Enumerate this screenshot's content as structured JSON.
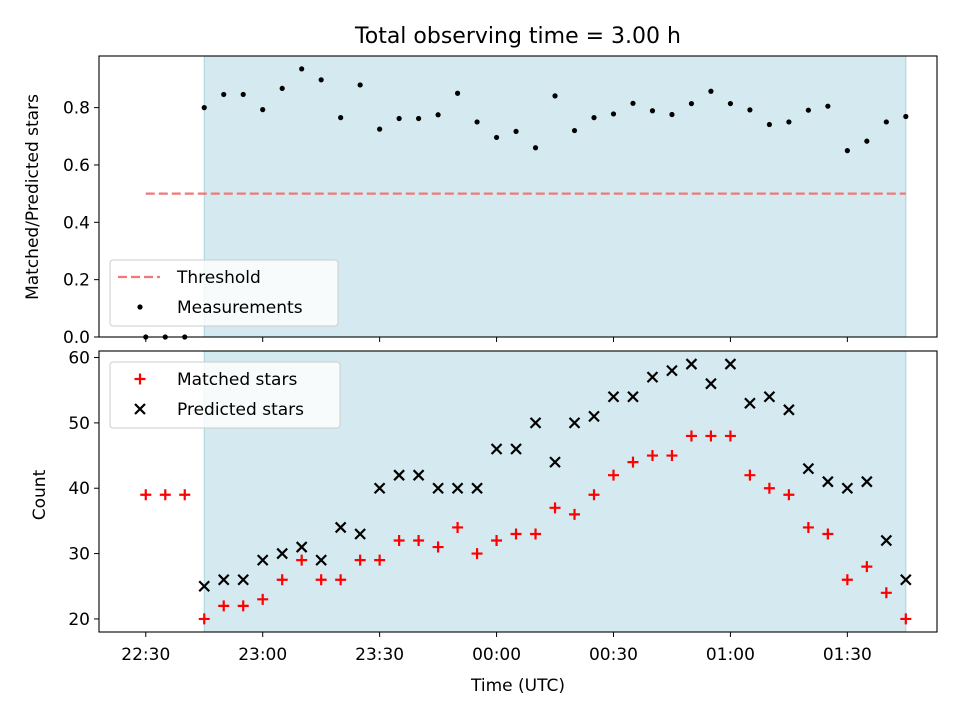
{
  "chart_data": [
    {
      "type": "scatter",
      "title": "Total observing time = 3.00 h",
      "xlabel": "",
      "ylabel": "Matched/Predicted stars",
      "ylim": [
        0,
        0.98
      ],
      "yticks": [
        0.0,
        0.2,
        0.4,
        0.6,
        0.8
      ],
      "ytick_labels": [
        "0.0",
        "0.2",
        "0.4",
        "0.6",
        "0.8"
      ],
      "shaded_interval": [
        "22:45",
        "01:45"
      ],
      "shaded_color": "#d4eaf0",
      "legend": {
        "position": "lower-left",
        "entries": [
          {
            "label": "Threshold",
            "color": "#f07878",
            "style": "dashed-line"
          },
          {
            "label": "Measurements",
            "color": "#000000",
            "style": "dot"
          }
        ]
      },
      "series": [
        {
          "name": "Threshold",
          "style": "dashed-line",
          "color": "#f07878",
          "x": [
            "22:30",
            "01:45"
          ],
          "y": [
            0.5,
            0.5
          ]
        },
        {
          "name": "Measurements",
          "style": "dot",
          "color": "#000000",
          "x": [
            "22:30",
            "22:35",
            "22:40",
            "22:45",
            "22:50",
            "22:55",
            "23:00",
            "23:05",
            "23:10",
            "23:15",
            "23:20",
            "23:25",
            "23:30",
            "23:35",
            "23:40",
            "23:45",
            "23:50",
            "23:55",
            "00:00",
            "00:05",
            "00:10",
            "00:15",
            "00:20",
            "00:25",
            "00:30",
            "00:35",
            "00:40",
            "00:45",
            "00:50",
            "00:55",
            "01:00",
            "01:05",
            "01:10",
            "01:15",
            "01:20",
            "01:25",
            "01:30",
            "01:35",
            "01:40",
            "01:45"
          ],
          "y": [
            0.0,
            0.0,
            0.0,
            0.8,
            0.846,
            0.846,
            0.793,
            0.867,
            0.935,
            0.897,
            0.765,
            0.879,
            0.725,
            0.762,
            0.762,
            0.775,
            0.85,
            0.75,
            0.696,
            0.717,
            0.66,
            0.841,
            0.72,
            0.765,
            0.778,
            0.815,
            0.789,
            0.776,
            0.814,
            0.857,
            0.814,
            0.792,
            0.741,
            0.75,
            0.791,
            0.805,
            0.65,
            0.683,
            0.75,
            0.769
          ]
        }
      ]
    },
    {
      "type": "scatter",
      "title": "",
      "xlabel": "Time (UTC)",
      "ylabel": "Count",
      "ylim": [
        18,
        61
      ],
      "yticks": [
        20,
        30,
        40,
        50,
        60
      ],
      "ytick_labels": [
        "20",
        "30",
        "40",
        "50",
        "60"
      ],
      "xticks": [
        "22:30",
        "23:00",
        "23:30",
        "00:00",
        "00:30",
        "01:00",
        "01:30"
      ],
      "shaded_interval": [
        "22:45",
        "01:45"
      ],
      "shaded_color": "#d4eaf0",
      "legend": {
        "position": "top-left",
        "entries": [
          {
            "label": "Matched stars",
            "color": "#ff0000",
            "style": "plus"
          },
          {
            "label": "Predicted stars",
            "color": "#000000",
            "style": "x"
          }
        ]
      },
      "series": [
        {
          "name": "Matched stars",
          "style": "plus",
          "color": "#ff0000",
          "x": [
            "22:30",
            "22:35",
            "22:40",
            "22:45",
            "22:50",
            "22:55",
            "23:00",
            "23:05",
            "23:10",
            "23:15",
            "23:20",
            "23:25",
            "23:30",
            "23:35",
            "23:40",
            "23:45",
            "23:50",
            "23:55",
            "00:00",
            "00:05",
            "00:10",
            "00:15",
            "00:20",
            "00:25",
            "00:30",
            "00:35",
            "00:40",
            "00:45",
            "00:50",
            "00:55",
            "01:00",
            "01:05",
            "01:10",
            "01:15",
            "01:20",
            "01:25",
            "01:30",
            "01:35",
            "01:40",
            "01:45"
          ],
          "y": [
            39,
            39,
            39,
            20,
            22,
            22,
            23,
            26,
            29,
            26,
            26,
            29,
            29,
            32,
            32,
            31,
            34,
            30,
            32,
            33,
            33,
            37,
            36,
            39,
            42,
            44,
            45,
            45,
            48,
            48,
            48,
            42,
            40,
            39,
            34,
            33,
            26,
            28,
            24,
            20
          ]
        },
        {
          "name": "Predicted stars",
          "style": "x",
          "color": "#000000",
          "x": [
            "22:45",
            "22:50",
            "22:55",
            "23:00",
            "23:05",
            "23:10",
            "23:15",
            "23:20",
            "23:25",
            "23:30",
            "23:35",
            "23:40",
            "23:45",
            "23:50",
            "23:55",
            "00:00",
            "00:05",
            "00:10",
            "00:15",
            "00:20",
            "00:25",
            "00:30",
            "00:35",
            "00:40",
            "00:45",
            "00:50",
            "00:55",
            "01:00",
            "01:05",
            "01:10",
            "01:15",
            "01:20",
            "01:25",
            "01:30",
            "01:35",
            "01:40",
            "01:45"
          ],
          "y": [
            25,
            26,
            26,
            29,
            30,
            31,
            29,
            34,
            33,
            40,
            42,
            42,
            40,
            40,
            40,
            46,
            46,
            50,
            44,
            50,
            51,
            54,
            54,
            57,
            58,
            59,
            56,
            59,
            53,
            54,
            52,
            43,
            41,
            40,
            41,
            32,
            26
          ]
        }
      ]
    }
  ]
}
